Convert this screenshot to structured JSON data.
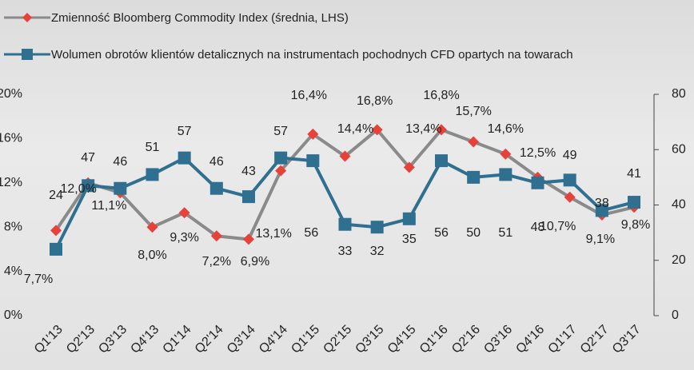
{
  "chart_data": {
    "type": "line",
    "categories": [
      "Q1'13",
      "Q2'13",
      "Q3'13",
      "Q4'13",
      "Q1'14",
      "Q2'14",
      "Q3'14",
      "Q4'14",
      "Q1'15",
      "Q2'15",
      "Q3'15",
      "Q4'15",
      "Q1'16",
      "Q2'16",
      "Q3'16",
      "Q4'16",
      "Q1'17",
      "Q2'17",
      "Q3'17"
    ],
    "series": [
      {
        "name": "Zmienność Bloomberg Commodity Index (średnia, LHS)",
        "color": "#8a8a8a",
        "marker_color": "#e8413a",
        "marker": "diamond",
        "values": [
          7.7,
          12.0,
          11.1,
          8.0,
          9.3,
          7.2,
          6.9,
          13.1,
          16.4,
          14.4,
          16.8,
          13.4,
          16.8,
          15.7,
          14.6,
          12.5,
          10.7,
          9.1,
          9.8
        ],
        "value_labels": [
          "7,7%",
          "12,0%",
          "11,1%",
          "8,0%",
          "9,3%",
          "7,2%",
          "6,9%",
          "13,1%",
          "16,4%",
          "14,4%",
          "16,8%",
          "13,4%",
          "16,8%",
          "15,7%",
          "14,6%",
          "12,5%",
          "10,7%",
          "9,1%",
          "9,8%"
        ]
      },
      {
        "name": "Wolumen obrotów klientów detalicznych na instrumentach pochodnych CFD opartych na towarach",
        "color": "#2f6f8f",
        "marker_color": "#2f6f8f",
        "marker": "square",
        "axis": "y2",
        "values": [
          24,
          47,
          46,
          51,
          57,
          46,
          43,
          57,
          56,
          33,
          32,
          35,
          56,
          50,
          51,
          48,
          49,
          38,
          41
        ]
      }
    ],
    "ylim": [
      0,
      20
    ],
    "yticks": [
      {
        "value": 0,
        "label": "0%"
      },
      {
        "value": 4,
        "label": "4%"
      },
      {
        "value": 8,
        "label": "8%"
      },
      {
        "value": 12,
        "label": "12%"
      },
      {
        "value": 16,
        "label": "16%"
      },
      {
        "value": 20,
        "label": "20%"
      }
    ],
    "y2lim": [
      0,
      80
    ],
    "y2ticks": [
      0,
      20,
      40,
      60,
      80
    ],
    "grid": false
  }
}
